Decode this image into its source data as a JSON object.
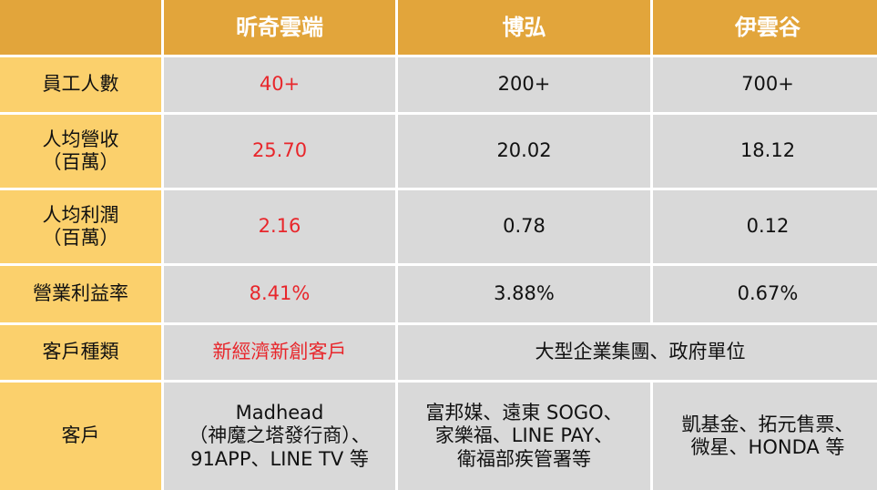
{
  "colors": {
    "header_bg": "#e2a53b",
    "label_bg": "#fbd06c",
    "cell_bg": "#d9d9d9",
    "highlight_text": "#e8262b"
  },
  "header": {
    "corner": "",
    "col1": "昕奇雲端",
    "col2": "博弘",
    "col3": "伊雲谷"
  },
  "rows": {
    "employees": {
      "label": "員工人數",
      "col1": "40+",
      "col2": "200+",
      "col3": "700+"
    },
    "revenue_per_capita": {
      "label": "人均營收\n（百萬）",
      "col1": "25.70",
      "col2": "20.02",
      "col3": "18.12"
    },
    "profit_per_capita": {
      "label": "人均利潤\n（百萬）",
      "col1": "2.16",
      "col2": "0.78",
      "col3": "0.12"
    },
    "operating_margin": {
      "label": "營業利益率",
      "col1": "8.41%",
      "col2": "3.88%",
      "col3": "0.67%"
    },
    "customer_type": {
      "label": "客戶種類",
      "col1": "新經濟新創客戶",
      "col23": "大型企業集團、政府單位"
    },
    "customers": {
      "label": "客戶",
      "col1": "Madhead\n（神魔之塔發行商）、\n91APP、LINE TV 等",
      "col2": "富邦媒、遠東 SOGO、\n家樂福、LINE PAY、\n衛福部疾管署等",
      "col3": "凱基金、拓元售票、\n微星、HONDA 等"
    }
  }
}
